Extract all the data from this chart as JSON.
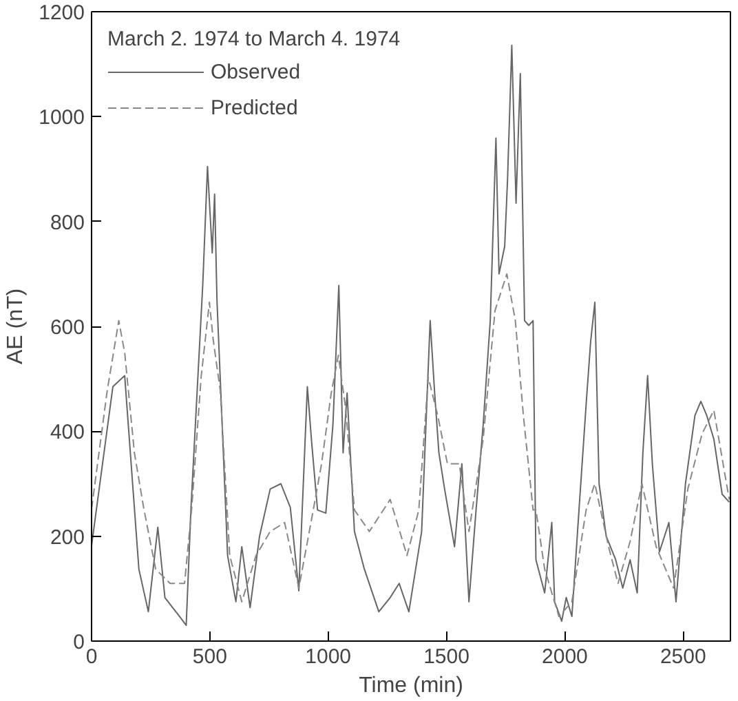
{
  "chart_data": {
    "type": "line",
    "legend_title": "March 2. 1974 to March 4. 1974",
    "xlabel": "Time (min)",
    "ylabel": "AE (nT)",
    "xlim": [
      0,
      2700
    ],
    "xticks": [
      0,
      500,
      1000,
      1500,
      2000,
      2500
    ],
    "ylim": [
      0,
      1200
    ],
    "yticks": [
      0,
      200,
      400,
      600,
      800,
      1000,
      1200
    ],
    "grid": false,
    "legend": "top left",
    "series": [
      {
        "name": "Observed",
        "color": "#666666",
        "line_style": "solid",
        "x": [
          0,
          90,
          140,
          200,
          240,
          280,
          310,
          370,
          400,
          420,
          470,
          490,
          510,
          520,
          530,
          575,
          610,
          635,
          670,
          710,
          755,
          800,
          840,
          876,
          912,
          930,
          955,
          990,
          1020,
          1045,
          1063,
          1080,
          1111,
          1153,
          1214,
          1262,
          1300,
          1341,
          1395,
          1431,
          1450,
          1468,
          1492,
          1534,
          1565,
          1595,
          1625,
          1655,
          1685,
          1709,
          1722,
          1746,
          1758,
          1776,
          1794,
          1812,
          1830,
          1848,
          1866,
          1878,
          1915,
          1945,
          1957,
          1987,
          2006,
          2030,
          2060,
          2090,
          2109,
          2127,
          2145,
          2175,
          2215,
          2245,
          2276,
          2306,
          2330,
          2350,
          2370,
          2400,
          2440,
          2470,
          2510,
          2550,
          2575,
          2600,
          2630,
          2665,
          2695
        ],
        "values": [
          182,
          485,
          506,
          137,
          56,
          217,
          83,
          48,
          30,
          252,
          680,
          905,
          740,
          852,
          650,
          163,
          75,
          180,
          64,
          200,
          290,
          300,
          255,
          96,
          485,
          380,
          250,
          244,
          412,
          678,
          359,
          473,
          209,
          137,
          56,
          83,
          110,
          56,
          209,
          611,
          473,
          359,
          290,
          180,
          338,
          75,
          250,
          412,
          611,
          959,
          700,
          753,
          880,
          1136,
          835,
          1082,
          611,
          602,
          611,
          155,
          92,
          226,
          75,
          38,
          83,
          47,
          250,
          450,
          570,
          646,
          300,
          200,
          155,
          101,
          155,
          92,
          359,
          506,
          338,
          170,
          226,
          75,
          300,
          430,
          457,
          430,
          385,
          280,
          265
        ]
      },
      {
        "name": "Predicted",
        "color": "#888888",
        "line_style": "dashed",
        "x": [
          0,
          66,
          115,
          140,
          181,
          221,
          271,
          332,
          393,
          423,
          463,
          498,
          514,
          544,
          584,
          635,
          695,
          755,
          816,
          876,
          937,
          972,
          1013,
          1043,
          1073,
          1111,
          1174,
          1262,
          1333,
          1383,
          1423,
          1463,
          1504,
          1554,
          1595,
          1655,
          1705,
          1755,
          1791,
          1825,
          1866,
          1878,
          1915,
          1975,
          2030,
          2090,
          2127,
          2185,
          2225,
          2276,
          2326,
          2386,
          2460,
          2520,
          2580,
          2630,
          2695
        ],
        "values": [
          252,
          477,
          611,
          550,
          359,
          252,
          137,
          110,
          110,
          252,
          503,
          646,
          575,
          477,
          163,
          75,
          163,
          209,
          226,
          101,
          250,
          338,
          473,
          545,
          446,
          250,
          209,
          270,
          163,
          250,
          503,
          430,
          338,
          338,
          209,
          385,
          630,
          700,
          611,
          430,
          250,
          250,
          137,
          47,
          75,
          250,
          300,
          180,
          110,
          190,
          300,
          180,
          101,
          290,
          395,
          440,
          270
        ]
      }
    ]
  }
}
